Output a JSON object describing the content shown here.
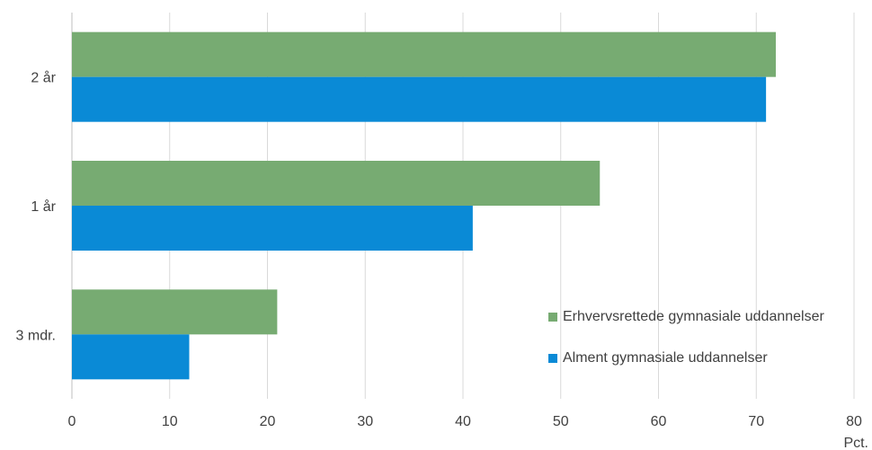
{
  "chart_data": {
    "type": "bar",
    "orientation": "horizontal",
    "categories": [
      "3 mdr.",
      "1 år",
      "2 år"
    ],
    "series": [
      {
        "name": "Erhvervsrettede gymnasiale uddannelser",
        "color": "#77ab72",
        "values": [
          21,
          54,
          72
        ]
      },
      {
        "name": "Alment gymnasiale uddannelser",
        "color": "#0a8ad6",
        "values": [
          12,
          41,
          71
        ]
      }
    ],
    "xticks": [
      "0",
      "10",
      "20",
      "30",
      "40",
      "50",
      "60",
      "70",
      "80"
    ],
    "xlim": [
      0,
      80
    ],
    "xunit": "Pct.",
    "grid": true,
    "legend_position": "bottom-right"
  }
}
